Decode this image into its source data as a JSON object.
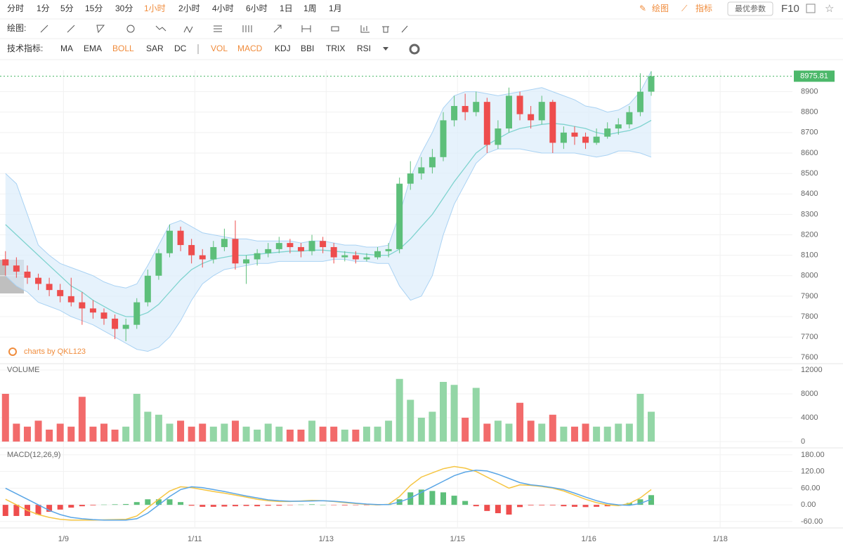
{
  "toolbar": {
    "periods": [
      "分时",
      "1分",
      "5分",
      "15分",
      "30分",
      "1小时",
      "2小时",
      "4小时",
      "6小时",
      "1日",
      "1周",
      "1月"
    ],
    "active_period": 5,
    "active_color": "#f08c3c",
    "draw": "绘图",
    "indicator": "指标",
    "params": "最优参数",
    "f10": "F10",
    "draw_label": "绘图:",
    "tech_label": "技术指标:",
    "indicators": [
      "MA",
      "EMA",
      "BOLL",
      "SAR",
      "DC",
      "VOL",
      "MACD",
      "KDJ",
      "BBI",
      "TRIX",
      "RSI"
    ],
    "active_indicators": [
      2,
      5,
      6
    ]
  },
  "chart_data": [
    {
      "type": "candlestick",
      "watermark": "charts by QKL123",
      "up_color": "#5dbf7a",
      "down_color": "#ee4d4d",
      "ylim": [
        7570,
        9005
      ],
      "yticks": [
        7600,
        7700,
        7800,
        7900,
        8000,
        8100,
        8200,
        8300,
        8400,
        8500,
        8600,
        8700,
        8800,
        8900
      ],
      "grid": true,
      "candles": [
        [
          8080,
          8120,
          8000,
          8050
        ],
        [
          8050,
          8090,
          7990,
          8020
        ],
        [
          8020,
          8050,
          7960,
          7990
        ],
        [
          7990,
          8010,
          7930,
          7960
        ],
        [
          7960,
          7990,
          7900,
          7930
        ],
        [
          7930,
          7960,
          7870,
          7900
        ],
        [
          7900,
          7990,
          7850,
          7870
        ],
        [
          7870,
          7920,
          7760,
          7840
        ],
        [
          7840,
          7880,
          7790,
          7820
        ],
        [
          7820,
          7840,
          7760,
          7790
        ],
        [
          7790,
          7810,
          7690,
          7740
        ],
        [
          7740,
          7790,
          7680,
          7760
        ],
        [
          7760,
          7890,
          7740,
          7870
        ],
        [
          7870,
          8030,
          7850,
          8000
        ],
        [
          8000,
          8130,
          7980,
          8110
        ],
        [
          8110,
          8250,
          8090,
          8220
        ],
        [
          8220,
          8240,
          8120,
          8150
        ],
        [
          8150,
          8180,
          8060,
          8100
        ],
        [
          8100,
          8130,
          8040,
          8080
        ],
        [
          8080,
          8170,
          8060,
          8140
        ],
        [
          8140,
          8230,
          8120,
          8180
        ],
        [
          8180,
          8270,
          8030,
          8060
        ],
        [
          8060,
          8100,
          7960,
          8080
        ],
        [
          8080,
          8130,
          8050,
          8110
        ],
        [
          8110,
          8160,
          8090,
          8130
        ],
        [
          8130,
          8190,
          8110,
          8160
        ],
        [
          8160,
          8180,
          8110,
          8140
        ],
        [
          8140,
          8160,
          8090,
          8120
        ],
        [
          8120,
          8200,
          8100,
          8170
        ],
        [
          8170,
          8190,
          8110,
          8140
        ],
        [
          8140,
          8160,
          8060,
          8090
        ],
        [
          8090,
          8120,
          8070,
          8100
        ],
        [
          8100,
          8120,
          8060,
          8080
        ],
        [
          8080,
          8110,
          8070,
          8090
        ],
        [
          8090,
          8140,
          8080,
          8120
        ],
        [
          8120,
          8160,
          8090,
          8130
        ],
        [
          8130,
          8480,
          8110,
          8450
        ],
        [
          8450,
          8560,
          8420,
          8500
        ],
        [
          8500,
          8580,
          8470,
          8530
        ],
        [
          8530,
          8620,
          8500,
          8580
        ],
        [
          8580,
          8800,
          8560,
          8760
        ],
        [
          8760,
          8880,
          8730,
          8830
        ],
        [
          8830,
          8890,
          8760,
          8800
        ],
        [
          8800,
          8900,
          8780,
          8850
        ],
        [
          8850,
          8870,
          8600,
          8640
        ],
        [
          8640,
          8760,
          8620,
          8720
        ],
        [
          8720,
          8920,
          8700,
          8880
        ],
        [
          8880,
          8900,
          8760,
          8790
        ],
        [
          8790,
          8830,
          8720,
          8760
        ],
        [
          8760,
          8880,
          8740,
          8850
        ],
        [
          8850,
          8860,
          8600,
          8650
        ],
        [
          8650,
          8730,
          8620,
          8700
        ],
        [
          8700,
          8730,
          8640,
          8680
        ],
        [
          8680,
          8700,
          8620,
          8650
        ],
        [
          8650,
          8720,
          8640,
          8680
        ],
        [
          8680,
          8750,
          8670,
          8720
        ],
        [
          8720,
          8770,
          8690,
          8740
        ],
        [
          8740,
          8830,
          8720,
          8800
        ],
        [
          8800,
          8990,
          8780,
          8900
        ],
        [
          8900,
          9000,
          8880,
          8975.81
        ]
      ],
      "boll": {
        "band_color": "#a9d2f3",
        "fill": "#dcecfb",
        "mid_color": "#7fd3cf",
        "upper": [
          8500,
          8450,
          8300,
          8150,
          8100,
          8060,
          8040,
          8020,
          8000,
          7970,
          7950,
          7940,
          7960,
          8050,
          8150,
          8250,
          8270,
          8240,
          8210,
          8200,
          8190,
          8180,
          8180,
          8170,
          8170,
          8170,
          8170,
          8160,
          8170,
          8170,
          8160,
          8150,
          8150,
          8140,
          8140,
          8150,
          8300,
          8480,
          8600,
          8700,
          8820,
          8880,
          8900,
          8900,
          8890,
          8880,
          8890,
          8900,
          8910,
          8920,
          8900,
          8880,
          8860,
          8830,
          8820,
          8800,
          8810,
          8840,
          8900,
          9000
        ],
        "mid": [
          8250,
          8200,
          8150,
          8100,
          8050,
          8000,
          7950,
          7920,
          7880,
          7850,
          7820,
          7800,
          7800,
          7820,
          7860,
          7920,
          7980,
          8030,
          8060,
          8080,
          8090,
          8100,
          8100,
          8105,
          8110,
          8115,
          8120,
          8120,
          8125,
          8125,
          8120,
          8115,
          8110,
          8105,
          8100,
          8100,
          8130,
          8180,
          8240,
          8300,
          8380,
          8460,
          8530,
          8600,
          8640,
          8670,
          8700,
          8720,
          8730,
          8740,
          8745,
          8740,
          8730,
          8720,
          8700,
          8690,
          8700,
          8710,
          8730,
          8760
        ],
        "lower": [
          8000,
          7950,
          7920,
          7870,
          7850,
          7830,
          7800,
          7780,
          7760,
          7730,
          7700,
          7670,
          7640,
          7630,
          7650,
          7700,
          7780,
          7880,
          7960,
          8000,
          8030,
          8040,
          8050,
          8060,
          8060,
          8070,
          8070,
          8070,
          8070,
          8070,
          8080,
          8080,
          8070,
          8070,
          8060,
          8060,
          7950,
          7880,
          7900,
          8000,
          8200,
          8350,
          8450,
          8550,
          8600,
          8620,
          8620,
          8620,
          8610,
          8600,
          8600,
          8600,
          8600,
          8590,
          8580,
          8590,
          8610,
          8610,
          8600,
          8580
        ]
      },
      "last_color": "#4cb86a"
    },
    {
      "type": "bar",
      "title": "VOLUME",
      "up_color": "#93d6a6",
      "down_color": "#f26b6b",
      "ylim": [
        -1060,
        13060
      ],
      "yticks": [
        0,
        4000,
        8000,
        12000
      ],
      "grid": true,
      "values": [
        8000,
        3000,
        2500,
        3500,
        2000,
        3000,
        2500,
        7500,
        2500,
        3000,
        2000,
        2500,
        8000,
        5000,
        4500,
        3000,
        3500,
        2500,
        3000,
        2500,
        3000,
        3500,
        2500,
        2000,
        3000,
        2500,
        2000,
        2000,
        3500,
        2500,
        2500,
        2000,
        2000,
        2500,
        2500,
        3500,
        10500,
        7000,
        4000,
        5000,
        10000,
        9500,
        4000,
        9000,
        3000,
        3500,
        3000,
        6500,
        3500,
        3000,
        4500,
        2500,
        2500,
        3000,
        2500,
        2500,
        3000,
        3000,
        8000,
        5000
      ]
    },
    {
      "type": "macd",
      "title": "MACD(12,26,9)",
      "ylim": [
        -83,
        205
      ],
      "yticks": [
        {
          "value": -60,
          "label": "-60.00"
        },
        {
          "value": 0,
          "label": "0.00"
        },
        {
          "value": 60,
          "label": "60.00"
        },
        {
          "value": 120,
          "label": "120.00"
        },
        {
          "value": 180,
          "label": "180.00"
        }
      ],
      "grid": true,
      "xlim": [
        0,
        72.4
      ],
      "xticks": [
        {
          "value": 5.8,
          "label": "1/9"
        },
        {
          "value": 17.8,
          "label": "1/11"
        },
        {
          "value": 29.8,
          "label": "1/13"
        },
        {
          "value": 41.8,
          "label": "1/15"
        },
        {
          "value": 53.8,
          "label": "1/16"
        },
        {
          "value": 65.8,
          "label": "1/18"
        }
      ],
      "series": [
        {
          "color": "#f5c542",
          "values": [
            20,
            0,
            -20,
            -35,
            -45,
            -52,
            -55,
            -55,
            -55,
            -54,
            -53,
            -52,
            -40,
            -10,
            20,
            50,
            65,
            62,
            55,
            48,
            42,
            35,
            28,
            20,
            15,
            12,
            12,
            14,
            16,
            15,
            12,
            8,
            5,
            2,
            0,
            2,
            30,
            70,
            100,
            115,
            130,
            138,
            132,
            120,
            100,
            80,
            60,
            72,
            70,
            66,
            60,
            50,
            35,
            20,
            8,
            0,
            -3,
            5,
            25,
            55
          ]
        },
        {
          "color": "#5aa6e6",
          "values": [
            60,
            40,
            20,
            0,
            -20,
            -35,
            -45,
            -50,
            -53,
            -55,
            -55,
            -55,
            -50,
            -30,
            0,
            30,
            55,
            65,
            62,
            55,
            48,
            40,
            32,
            25,
            18,
            15,
            13,
            13,
            14,
            15,
            13,
            10,
            6,
            3,
            1,
            1,
            10,
            25,
            45,
            65,
            85,
            105,
            118,
            125,
            122,
            110,
            95,
            80,
            72,
            68,
            62,
            55,
            42,
            28,
            15,
            5,
            0,
            -2,
            5,
            20
          ]
        }
      ],
      "histogram": [
        -40,
        -40,
        -40,
        -35,
        -25,
        -17,
        -10,
        -5,
        -2,
        1,
        2,
        3,
        10,
        20,
        20,
        20,
        10,
        -3,
        -7,
        -7,
        -6,
        -5,
        -4,
        -5,
        -3,
        -3,
        -1,
        1,
        2,
        0,
        -1,
        -2,
        -1,
        -1,
        -1,
        1,
        20,
        45,
        55,
        50,
        45,
        33,
        14,
        -5,
        -22,
        -30,
        -35,
        -8,
        -2,
        -2,
        -2,
        -5,
        -7,
        -8,
        -7,
        -5,
        -3,
        7,
        20,
        35
      ],
      "up_color": "#5dbf7a",
      "down_color": "#ee4d4d"
    }
  ]
}
